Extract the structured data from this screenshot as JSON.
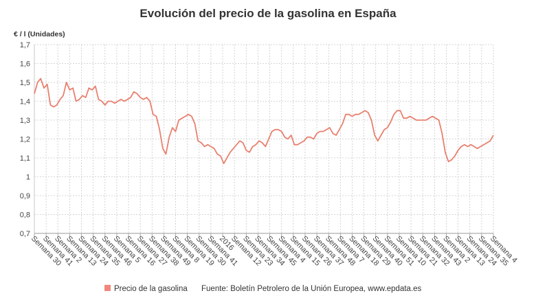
{
  "chart_data": {
    "type": "line",
    "title": "Evolución del precio de la gasolina en España",
    "ylabel": "€ / l (Unidades)",
    "xlabel": "",
    "ylim": [
      0.7,
      1.7
    ],
    "yticks": [
      "0,7",
      "0,8",
      "0,9",
      "1",
      "1,1",
      "1,2",
      "1,3",
      "1,4",
      "1,5",
      "1,6",
      "1,7"
    ],
    "grid": true,
    "legend": "bottom-left",
    "x_tick_labels": [
      "Semana 30",
      "Semana 41",
      "Semana 2",
      "Semana 13",
      "Semana 24",
      "Semana 35",
      "Semana 46",
      "Semana 5",
      "Semana 16",
      "Semana 27",
      "Semana 38",
      "Semana 49",
      "Semana 8",
      "Semana 19",
      "Semana 30",
      "Semana 41",
      "2016",
      "Semana 12",
      "Semana 23",
      "Semana 34",
      "Semana 45",
      "Semana 4",
      "Semana 15",
      "Semana 26",
      "Semana 37",
      "Semana 48",
      "Semana 7",
      "Semana 18",
      "Semana 29",
      "Semana 40",
      "Semana 51",
      "Semana 10",
      "Semana 21",
      "Semana 32",
      "Semana 43",
      "Semana 2",
      "Semana 13",
      "Semana 24",
      "Semana 35",
      "Semana 4"
    ],
    "series": [
      {
        "name": "Precio de la gasolina",
        "color": "#e8806f",
        "values": [
          1.44,
          1.5,
          1.52,
          1.47,
          1.49,
          1.38,
          1.37,
          1.38,
          1.41,
          1.43,
          1.5,
          1.46,
          1.47,
          1.4,
          1.41,
          1.43,
          1.42,
          1.47,
          1.46,
          1.48,
          1.41,
          1.4,
          1.38,
          1.4,
          1.4,
          1.39,
          1.4,
          1.41,
          1.4,
          1.41,
          1.42,
          1.45,
          1.44,
          1.42,
          1.41,
          1.42,
          1.4,
          1.33,
          1.32,
          1.25,
          1.15,
          1.12,
          1.21,
          1.26,
          1.24,
          1.3,
          1.31,
          1.32,
          1.33,
          1.32,
          1.28,
          1.19,
          1.18,
          1.16,
          1.17,
          1.16,
          1.15,
          1.12,
          1.11,
          1.07,
          1.1,
          1.13,
          1.15,
          1.17,
          1.19,
          1.18,
          1.14,
          1.13,
          1.16,
          1.17,
          1.19,
          1.18,
          1.16,
          1.2,
          1.24,
          1.25,
          1.25,
          1.24,
          1.21,
          1.2,
          1.22,
          1.17,
          1.17,
          1.18,
          1.19,
          1.21,
          1.21,
          1.2,
          1.23,
          1.24,
          1.24,
          1.25,
          1.26,
          1.23,
          1.22,
          1.25,
          1.28,
          1.33,
          1.33,
          1.32,
          1.33,
          1.33,
          1.34,
          1.35,
          1.34,
          1.3,
          1.22,
          1.19,
          1.22,
          1.25,
          1.26,
          1.29,
          1.33,
          1.35,
          1.35,
          1.31,
          1.31,
          1.32,
          1.31,
          1.3,
          1.3,
          1.3,
          1.3,
          1.31,
          1.32,
          1.31,
          1.3,
          1.23,
          1.13,
          1.08,
          1.09,
          1.11,
          1.14,
          1.16,
          1.17,
          1.16,
          1.17,
          1.16,
          1.15,
          1.16,
          1.17,
          1.18,
          1.19,
          1.22
        ]
      }
    ],
    "legend_entries": [
      "Precio de la gasolina"
    ]
  },
  "footer": {
    "legend_label": "Precio de la gasolina",
    "source": "Fuente: Boletín Petrolero de la Unión Europea, www.epdata.es"
  },
  "colors": {
    "line": "#e8806f",
    "grid": "#c8c8c8",
    "axis": "#999999"
  }
}
